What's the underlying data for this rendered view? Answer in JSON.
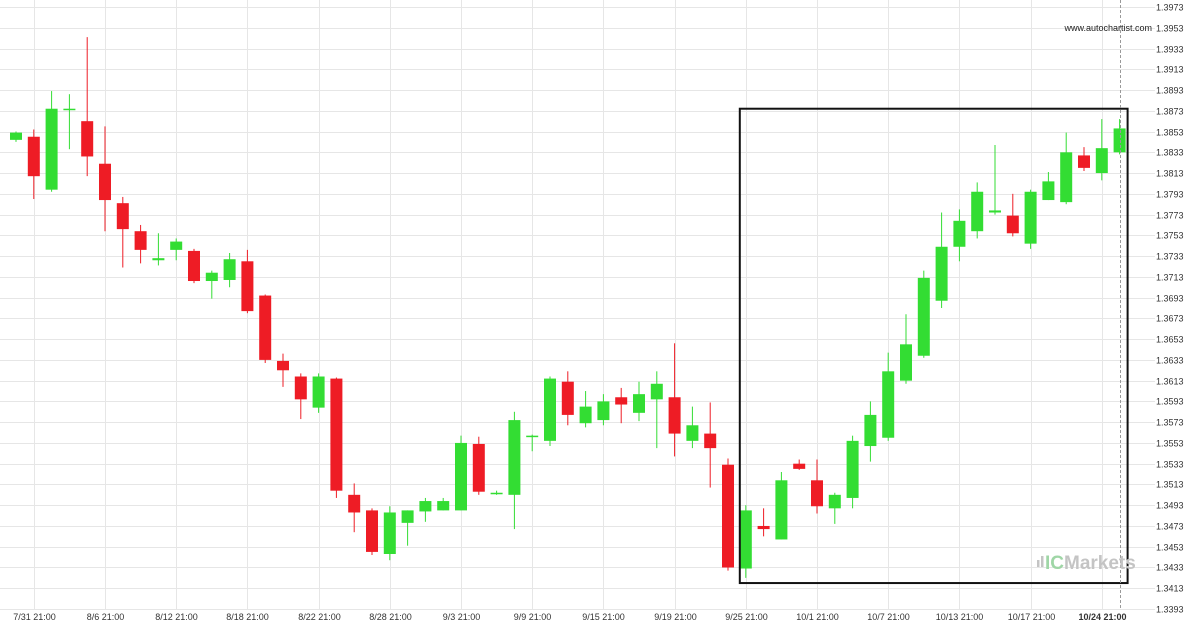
{
  "watermark": {
    "url": "www.autochartist.com"
  },
  "brand": {
    "prefix": "IC",
    "suffix": "Markets"
  },
  "colors": {
    "up": "#33dd33",
    "down": "#ee1c25",
    "grid": "#e6e6e6",
    "pattern_box": "#111111",
    "axis_text": "#333333"
  },
  "chart_data": {
    "type": "candlestick",
    "title": "",
    "xlabel": "",
    "ylabel": "",
    "ylim": [
      1.3393,
      1.3973
    ],
    "grid": true,
    "y_ticks": [
      "1.3973",
      "1.3953",
      "1.3933",
      "1.3913",
      "1.3893",
      "1.3873",
      "1.3853",
      "1.3833",
      "1.3813",
      "1.3793",
      "1.3773",
      "1.3753",
      "1.3733",
      "1.3713",
      "1.3693",
      "1.3673",
      "1.3653",
      "1.3633",
      "1.3613",
      "1.3593",
      "1.3573",
      "1.3553",
      "1.3533",
      "1.3513",
      "1.3493",
      "1.3473",
      "1.3453",
      "1.3433",
      "1.3413",
      "1.3393"
    ],
    "x_ticks": [
      {
        "label": "7/31 21:00",
        "index": 1
      },
      {
        "label": "8/6 21:00",
        "index": 5
      },
      {
        "label": "8/12 21:00",
        "index": 9
      },
      {
        "label": "8/18 21:00",
        "index": 13
      },
      {
        "label": "8/22 21:00",
        "index": 17
      },
      {
        "label": "8/28 21:00",
        "index": 21
      },
      {
        "label": "9/3 21:00",
        "index": 25
      },
      {
        "label": "9/9 21:00",
        "index": 29
      },
      {
        "label": "9/15 21:00",
        "index": 33
      },
      {
        "label": "9/19 21:00",
        "index": 37
      },
      {
        "label": "9/25 21:00",
        "index": 41
      },
      {
        "label": "10/1 21:00",
        "index": 45
      },
      {
        "label": "10/7 21:00",
        "index": 49
      },
      {
        "label": "10/13 21:00",
        "index": 53
      },
      {
        "label": "10/17 21:00",
        "index": 57
      },
      {
        "label": "10/24 21:00",
        "index": 61,
        "bold": true
      }
    ],
    "candles": [
      {
        "o": 1.3845,
        "h": 1.3853,
        "l": 1.3843,
        "c": 1.3852
      },
      {
        "o": 1.3848,
        "h": 1.3855,
        "l": 1.3788,
        "c": 1.381
      },
      {
        "o": 1.3797,
        "h": 1.3892,
        "l": 1.3795,
        "c": 1.3875
      },
      {
        "o": 1.3874,
        "h": 1.3889,
        "l": 1.3836,
        "c": 1.3875
      },
      {
        "o": 1.3863,
        "h": 1.3944,
        "l": 1.381,
        "c": 1.3829
      },
      {
        "o": 1.3822,
        "h": 1.3858,
        "l": 1.3757,
        "c": 1.3787
      },
      {
        "o": 1.3784,
        "h": 1.379,
        "l": 1.3722,
        "c": 1.3759
      },
      {
        "o": 1.3757,
        "h": 1.3763,
        "l": 1.3726,
        "c": 1.3739
      },
      {
        "o": 1.3729,
        "h": 1.3755,
        "l": 1.3724,
        "c": 1.3731
      },
      {
        "o": 1.3739,
        "h": 1.375,
        "l": 1.3729,
        "c": 1.3747
      },
      {
        "o": 1.3738,
        "h": 1.374,
        "l": 1.3707,
        "c": 1.3709
      },
      {
        "o": 1.3709,
        "h": 1.3719,
        "l": 1.3692,
        "c": 1.3717
      },
      {
        "o": 1.371,
        "h": 1.3736,
        "l": 1.3703,
        "c": 1.373
      },
      {
        "o": 1.3728,
        "h": 1.3739,
        "l": 1.3678,
        "c": 1.368
      },
      {
        "o": 1.3695,
        "h": 1.3696,
        "l": 1.363,
        "c": 1.3633
      },
      {
        "o": 1.3632,
        "h": 1.3639,
        "l": 1.3607,
        "c": 1.3623
      },
      {
        "o": 1.3617,
        "h": 1.362,
        "l": 1.3576,
        "c": 1.3595
      },
      {
        "o": 1.3587,
        "h": 1.362,
        "l": 1.3582,
        "c": 1.3617
      },
      {
        "o": 1.3615,
        "h": 1.3616,
        "l": 1.35,
        "c": 1.3507
      },
      {
        "o": 1.3503,
        "h": 1.3514,
        "l": 1.3467,
        "c": 1.3486
      },
      {
        "o": 1.3488,
        "h": 1.349,
        "l": 1.3445,
        "c": 1.3448
      },
      {
        "o": 1.3446,
        "h": 1.3492,
        "l": 1.344,
        "c": 1.3486
      },
      {
        "o": 1.3476,
        "h": 1.3488,
        "l": 1.3454,
        "c": 1.3488
      },
      {
        "o": 1.3487,
        "h": 1.35,
        "l": 1.3477,
        "c": 1.3497
      },
      {
        "o": 1.3488,
        "h": 1.35,
        "l": 1.3488,
        "c": 1.3497
      },
      {
        "o": 1.3488,
        "h": 1.356,
        "l": 1.3488,
        "c": 1.3553
      },
      {
        "o": 1.3552,
        "h": 1.3559,
        "l": 1.3503,
        "c": 1.3506
      },
      {
        "o": 1.3505,
        "h": 1.3507,
        "l": 1.3503,
        "c": 1.3505
      },
      {
        "o": 1.3503,
        "h": 1.3583,
        "l": 1.347,
        "c": 1.3575
      },
      {
        "o": 1.356,
        "h": 1.3561,
        "l": 1.3545,
        "c": 1.356
      },
      {
        "o": 1.3555,
        "h": 1.3617,
        "l": 1.355,
        "c": 1.3615
      },
      {
        "o": 1.3612,
        "h": 1.3622,
        "l": 1.357,
        "c": 1.358
      },
      {
        "o": 1.3572,
        "h": 1.3603,
        "l": 1.3568,
        "c": 1.3588
      },
      {
        "o": 1.3575,
        "h": 1.36,
        "l": 1.357,
        "c": 1.3593
      },
      {
        "o": 1.3597,
        "h": 1.3606,
        "l": 1.3572,
        "c": 1.359
      },
      {
        "o": 1.3582,
        "h": 1.3612,
        "l": 1.3574,
        "c": 1.36
      },
      {
        "o": 1.3595,
        "h": 1.3622,
        "l": 1.3548,
        "c": 1.361
      },
      {
        "o": 1.3597,
        "h": 1.3649,
        "l": 1.354,
        "c": 1.3562
      },
      {
        "o": 1.3555,
        "h": 1.3588,
        "l": 1.3548,
        "c": 1.357
      },
      {
        "o": 1.3562,
        "h": 1.3592,
        "l": 1.351,
        "c": 1.3548
      },
      {
        "o": 1.3532,
        "h": 1.3538,
        "l": 1.343,
        "c": 1.3433
      },
      {
        "o": 1.3432,
        "h": 1.3493,
        "l": 1.3423,
        "c": 1.3488
      },
      {
        "o": 1.3473,
        "h": 1.349,
        "l": 1.3463,
        "c": 1.347
      },
      {
        "o": 1.346,
        "h": 1.3525,
        "l": 1.346,
        "c": 1.3517
      },
      {
        "o": 1.3533,
        "h": 1.3537,
        "l": 1.3527,
        "c": 1.3528
      },
      {
        "o": 1.3517,
        "h": 1.3537,
        "l": 1.3485,
        "c": 1.3492
      },
      {
        "o": 1.349,
        "h": 1.3505,
        "l": 1.3475,
        "c": 1.3503
      },
      {
        "o": 1.35,
        "h": 1.356,
        "l": 1.349,
        "c": 1.3555
      },
      {
        "o": 1.355,
        "h": 1.3593,
        "l": 1.3535,
        "c": 1.358
      },
      {
        "o": 1.3558,
        "h": 1.364,
        "l": 1.3555,
        "c": 1.3622
      },
      {
        "o": 1.3613,
        "h": 1.3677,
        "l": 1.361,
        "c": 1.3648
      },
      {
        "o": 1.3637,
        "h": 1.3719,
        "l": 1.3635,
        "c": 1.3712
      },
      {
        "o": 1.369,
        "h": 1.3775,
        "l": 1.3683,
        "c": 1.3742
      },
      {
        "o": 1.3742,
        "h": 1.3778,
        "l": 1.3728,
        "c": 1.3767
      },
      {
        "o": 1.3757,
        "h": 1.3804,
        "l": 1.375,
        "c": 1.3795
      },
      {
        "o": 1.3775,
        "h": 1.384,
        "l": 1.3773,
        "c": 1.3777
      },
      {
        "o": 1.3772,
        "h": 1.3793,
        "l": 1.3752,
        "c": 1.3755
      },
      {
        "o": 1.3745,
        "h": 1.3797,
        "l": 1.374,
        "c": 1.3795
      },
      {
        "o": 1.3787,
        "h": 1.3814,
        "l": 1.3787,
        "c": 1.3805
      },
      {
        "o": 1.3785,
        "h": 1.3852,
        "l": 1.3783,
        "c": 1.3833
      },
      {
        "o": 1.383,
        "h": 1.3838,
        "l": 1.3815,
        "c": 1.3818
      },
      {
        "o": 1.3813,
        "h": 1.3865,
        "l": 1.3806,
        "c": 1.3837
      },
      {
        "o": 1.3833,
        "h": 1.3865,
        "l": 1.3831,
        "c": 1.3856
      }
    ],
    "pattern_box": {
      "start_index": 41,
      "end_index": 62,
      "top": 1.3875,
      "bottom": 1.3418
    },
    "current_time_index": 62
  }
}
